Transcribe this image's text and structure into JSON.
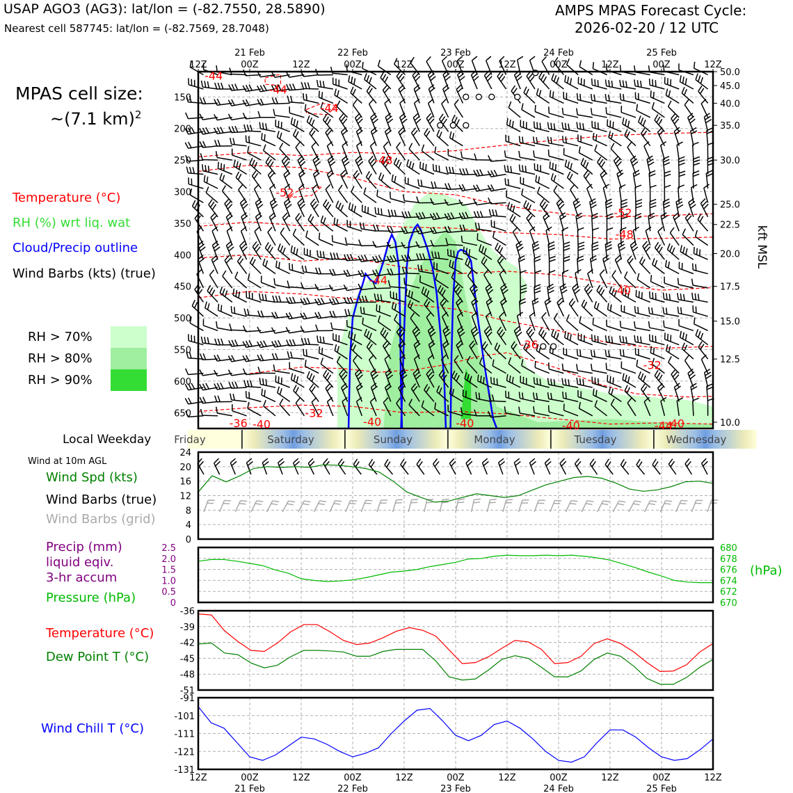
{
  "header": {
    "station": "USAP AGO3 (AG3): lat/lon = (-82.7550, 28.5890)",
    "nearest": "Nearest cell 587745: lat/lon = (-82.7569, 28.7048)",
    "cycle_title": "AMPS MPAS Forecast Cycle:",
    "cycle_time": "2026-02-20 / 12 UTC"
  },
  "left": {
    "cell_size_label": "MPAS cell size:",
    "cell_size_value": "~(7.1 km)",
    "cell_size_exp": "2",
    "legend_temperature": "Temperature (°C)",
    "legend_rh": "RH (%) wrt liq. wat",
    "legend_cloud": "Cloud/Precip outline",
    "legend_barbs": "Wind Barbs (kts) (true)",
    "rh70": "RH > 70%",
    "rh80": "RH > 80%",
    "rh90": "RH > 90%",
    "local_weekday": "Local Weekday",
    "wind10m": "Wind at 10m AGL",
    "wind_spd": "Wind Spd (kts)",
    "wind_barbs_true": "Wind Barbs (true)",
    "wind_barbs_grid": "Wind Barbs (grid)",
    "precip1": "Precip (mm)",
    "precip2": "liquid eqiv.",
    "precip3": "3-hr accum",
    "pressure": "Pressure (hPa)",
    "temp2": "Temperature (°C)",
    "dewpoint": "Dew Point T (°C)",
    "windchill": "Wind Chill T (°C)"
  },
  "colors": {
    "temp": "#ff0000",
    "rh_text": "#33dd33",
    "cloud": "#0000ff",
    "rh70": "#ccffcc",
    "rh80": "#a0eea0",
    "rh90": "#33dd33",
    "wind": "#008000",
    "precip": "#800080",
    "pressure": "#00bb00",
    "dew": "#008000",
    "chill": "#0000ff",
    "grid_barb": "#aaaaaa"
  },
  "time_axis": {
    "ticks": [
      "12Z",
      "00Z",
      "12Z",
      "00Z",
      "12Z",
      "00Z",
      "12Z",
      "00Z",
      "12Z",
      "00Z",
      "12Z"
    ],
    "dates": [
      "21 Feb",
      "22 Feb",
      "23 Feb",
      "24 Feb",
      "25 Feb"
    ]
  },
  "weekdays": [
    "Friday",
    "Saturday",
    "Sunday",
    "Monday",
    "Tuesday",
    "Wednesday"
  ],
  "chart_data": [
    {
      "type": "contour",
      "id": "cross_section",
      "y_axis_left": "Pressure (hPa)",
      "pressure_ticks": [
        "150",
        "200",
        "250",
        "300",
        "350",
        "400",
        "450",
        "500",
        "550",
        "600",
        "650"
      ],
      "ylim": [
        110,
        675
      ],
      "right_axis_label": "kft MSL",
      "height_ticks": [
        {
          "p": 110,
          "label": "50.0"
        },
        {
          "p": 132,
          "label": "45.0"
        },
        {
          "p": 160,
          "label": "40.0"
        },
        {
          "p": 195,
          "label": "35.0"
        },
        {
          "p": 250,
          "label": "30.0"
        },
        {
          "p": 320,
          "label": "25.0"
        },
        {
          "p": 352,
          "label": "22.5"
        },
        {
          "p": 398,
          "label": "20.0"
        },
        {
          "p": 450,
          "label": "17.5"
        },
        {
          "p": 505,
          "label": "15.0"
        },
        {
          "p": 565,
          "label": "12.5"
        },
        {
          "p": 665,
          "label": "10.0"
        }
      ],
      "temp_labels": [
        {
          "t": 3,
          "p": 116,
          "label": "-44"
        },
        {
          "t": 15.5,
          "p": 138,
          "label": "-44"
        },
        {
          "t": 25.5,
          "p": 167,
          "label": "-44"
        },
        {
          "t": 36,
          "p": 250,
          "label": "-48"
        },
        {
          "t": 16.8,
          "p": 301,
          "label": "-52"
        },
        {
          "t": 35,
          "p": 440,
          "label": "-44"
        },
        {
          "t": 82.5,
          "p": 333,
          "label": "-52"
        },
        {
          "t": 82.8,
          "p": 367,
          "label": "-48"
        },
        {
          "t": 82.3,
          "p": 456,
          "label": "-40"
        },
        {
          "t": 64.3,
          "p": 542,
          "label": "-36"
        },
        {
          "t": 88.2,
          "p": 574,
          "label": "-32"
        },
        {
          "t": 7.8,
          "p": 666,
          "label": "-36"
        },
        {
          "t": 12.3,
          "p": 668,
          "label": "-40"
        },
        {
          "t": 22.5,
          "p": 650,
          "label": "-32"
        },
        {
          "t": 33.8,
          "p": 664,
          "label": "-40"
        },
        {
          "t": 51.8,
          "p": 666,
          "label": "-40"
        },
        {
          "t": 72.4,
          "p": 670,
          "label": "-40"
        },
        {
          "t": 90.4,
          "p": 670,
          "label": "-44"
        },
        {
          "t": 92.7,
          "p": 667,
          "label": "-40"
        }
      ]
    },
    {
      "type": "line",
      "id": "wind_speed",
      "ylim": [
        0,
        24
      ],
      "yticks": [
        "0",
        "4",
        "8",
        "12",
        "16",
        "20",
        "24"
      ],
      "series": [
        {
          "name": "Wind Spd (kts)",
          "values": [
            13,
            17.5,
            15.8,
            17.5,
            19.5,
            20,
            19.8,
            20,
            19.8,
            20.5,
            20.4,
            20,
            19.5,
            18.5,
            16,
            13,
            11.5,
            10.2,
            10.5,
            11.5,
            12.5,
            12,
            11.5,
            12,
            13.5,
            15,
            16,
            17,
            17.3,
            16.8,
            15.5,
            13.8,
            13.2,
            13.6,
            14.5,
            15.8,
            16,
            15.4
          ]
        }
      ]
    },
    {
      "type": "line",
      "id": "precip_pressure",
      "precip_ylim": [
        0,
        2.5
      ],
      "precip_ticks": [
        "0",
        "0.5",
        "1.0",
        "1.5",
        "2.0",
        "2.5"
      ],
      "pressure_ylim": [
        670,
        680
      ],
      "pressure_ticks": [
        "670",
        "672",
        "674",
        "676",
        "678",
        "680"
      ],
      "right_label": "(hPa)",
      "series": [
        {
          "name": "Pressure (hPa)",
          "values": [
            677.5,
            677.8,
            677.8,
            677.5,
            677.1,
            676.7,
            675.9,
            675.3,
            674.3,
            674.0,
            673.8,
            673.9,
            674.1,
            674.5,
            675.0,
            675.5,
            675.7,
            676.0,
            676.5,
            676.9,
            677.3,
            677.9,
            678.0,
            678.4,
            678.6,
            678.5,
            678.5,
            678.6,
            678.5,
            678.6,
            678.4,
            678.1,
            677.7,
            677.0,
            676.3,
            675.5,
            674.8,
            674.0,
            673.7,
            673.6,
            673.6
          ]
        }
      ]
    },
    {
      "type": "line",
      "id": "temp_dew",
      "ylim": [
        -51,
        -36
      ],
      "yticks": [
        "-51",
        "-48",
        "-45",
        "-42",
        "-39",
        "-36"
      ],
      "series": [
        {
          "name": "Temperature (°C)",
          "values": [
            -36.6,
            -36.8,
            -39.8,
            -41.8,
            -43.5,
            -43.7,
            -42.1,
            -40.0,
            -38.6,
            -38.6,
            -40.0,
            -41.6,
            -42.4,
            -42.1,
            -41.1,
            -39.9,
            -39.2,
            -39.7,
            -40.8,
            -43.4,
            -46.0,
            -45.8,
            -44.7,
            -43.1,
            -41.6,
            -41.9,
            -43.3,
            -46.0,
            -45.8,
            -44.6,
            -42.2,
            -41.3,
            -42.2,
            -43.8,
            -45.8,
            -47.5,
            -47.4,
            -46.2,
            -43.8,
            -42.2
          ]
        },
        {
          "name": "Dew Point T (°C)",
          "values": [
            -42.3,
            -42.1,
            -44.0,
            -44.3,
            -45.9,
            -46.8,
            -46.3,
            -44.7,
            -43.5,
            -43.5,
            -43.6,
            -43.8,
            -44.6,
            -44.6,
            -43.7,
            -43.3,
            -43.3,
            -43.3,
            -45.5,
            -48.5,
            -49.1,
            -48.9,
            -47.2,
            -45.2,
            -44.5,
            -45.0,
            -46.7,
            -48.5,
            -48.5,
            -47.4,
            -45.2,
            -44.0,
            -44.6,
            -46.5,
            -48.8,
            -49.9,
            -49.9,
            -48.6,
            -46.7,
            -45.2
          ]
        }
      ]
    },
    {
      "type": "line",
      "id": "wind_chill",
      "ylim": [
        -131,
        -91
      ],
      "yticks": [
        "-131",
        "-121",
        "-111",
        "-101",
        "-91"
      ],
      "series": [
        {
          "name": "Wind Chill T (°C)",
          "values": [
            -96,
            -105,
            -108,
            -116,
            -124,
            -126,
            -123,
            -118,
            -113,
            -114,
            -117,
            -121,
            -124,
            -122,
            -119,
            -111,
            -104,
            -98,
            -97,
            -104,
            -112,
            -115,
            -112,
            -106,
            -104,
            -108,
            -114,
            -121,
            -126,
            -127,
            -124,
            -116,
            -109,
            -109,
            -113,
            -119,
            -124,
            -126,
            -125,
            -120,
            -114
          ]
        }
      ]
    }
  ]
}
